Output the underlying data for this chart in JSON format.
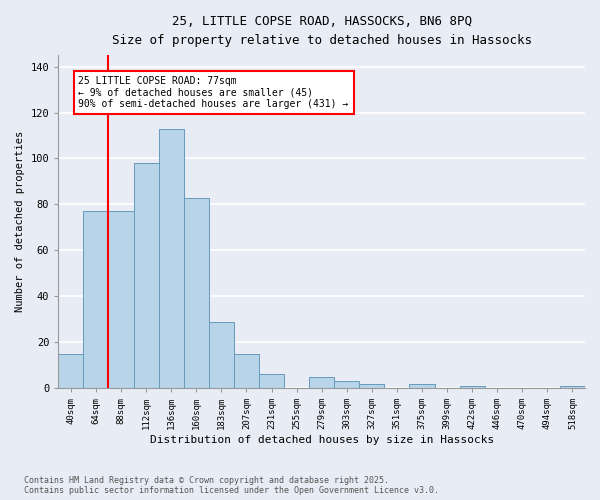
{
  "title_line1": "25, LITTLE COPSE ROAD, HASSOCKS, BN6 8PQ",
  "title_line2": "Size of property relative to detached houses in Hassocks",
  "xlabel": "Distribution of detached houses by size in Hassocks",
  "ylabel": "Number of detached properties",
  "categories": [
    "40sqm",
    "64sqm",
    "88sqm",
    "112sqm",
    "136sqm",
    "160sqm",
    "183sqm",
    "207sqm",
    "231sqm",
    "255sqm",
    "279sqm",
    "303sqm",
    "327sqm",
    "351sqm",
    "375sqm",
    "399sqm",
    "422sqm",
    "446sqm",
    "470sqm",
    "494sqm",
    "518sqm"
  ],
  "values": [
    15,
    77,
    77,
    98,
    113,
    83,
    29,
    15,
    6,
    0,
    5,
    3,
    2,
    0,
    2,
    0,
    1,
    0,
    0,
    0,
    1
  ],
  "bar_color": "#b8d4e8",
  "bar_edge_color": "#6699bb",
  "vline_x": 1.5,
  "vline_color": "red",
  "annotation_text": "25 LITTLE COPSE ROAD: 77sqm\n← 9% of detached houses are smaller (45)\n90% of semi-detached houses are larger (431) →",
  "annotation_box_color": "white",
  "annotation_box_edge_color": "red",
  "ylim": [
    0,
    145
  ],
  "yticks": [
    0,
    20,
    40,
    60,
    80,
    100,
    120,
    140
  ],
  "footer_line1": "Contains HM Land Registry data © Crown copyright and database right 2025.",
  "footer_line2": "Contains public sector information licensed under the Open Government Licence v3.0.",
  "bg_color": "#e8ecf4",
  "plot_bg_color": "#e8ecf4",
  "grid_color": "white"
}
